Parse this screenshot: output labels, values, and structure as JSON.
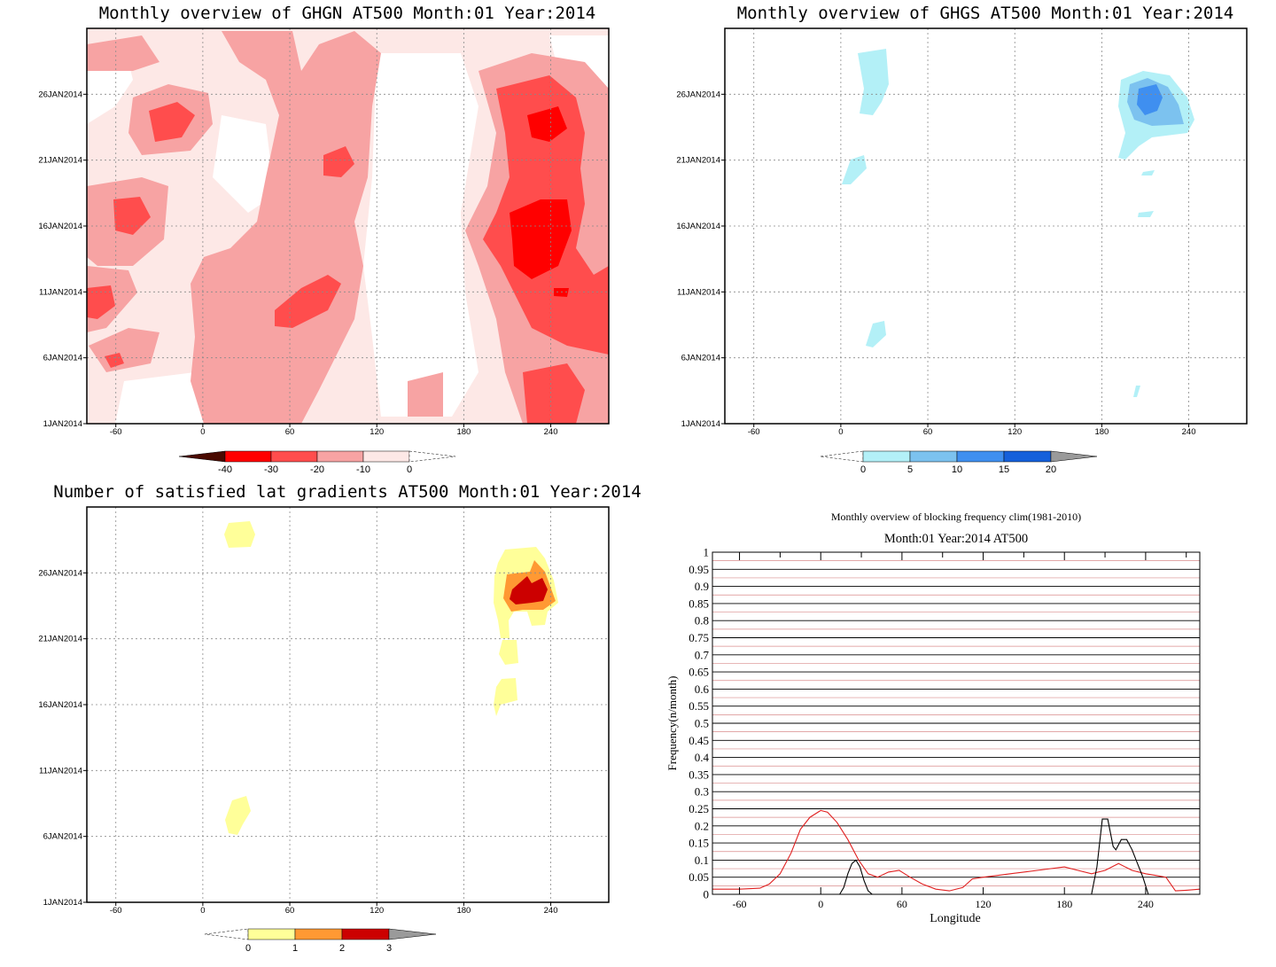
{
  "colors": {
    "ghgn_levels": [
      "#4a0a00",
      "#ff0000",
      "#ff4d4d",
      "#f7a3a3",
      "#fde8e6"
    ],
    "ghgs_levels": [
      "#b3f0f7",
      "#7cc2ef",
      "#3f8ff0",
      "#1560db",
      "#9a9a9a"
    ],
    "satisfied_levels": [
      "#ffff99",
      "#ff9933",
      "#cc0000",
      "#9a9a9a"
    ],
    "freq_line_red": "#e02020",
    "freq_line_black": "#000000",
    "freq_grid_pink": "#d98c8c"
  },
  "shared": {
    "x_tick_labels": [
      "-60",
      "0",
      "60",
      "120",
      "180",
      "240"
    ],
    "y_tick_labels": [
      "1JAN2014",
      "6JAN2014",
      "11JAN2014",
      "16JAN2014",
      "21JAN2014",
      "26JAN2014"
    ]
  },
  "panels": {
    "ghgn": {
      "title": "Monthly overview of GHGN AT500 Month:01 Year:2014",
      "colorbar_labels": [
        "-40",
        "-30",
        "-20",
        "-10",
        "0"
      ]
    },
    "ghgs": {
      "title": "Monthly overview of GHGS AT500 Month:01 Year:2014",
      "colorbar_labels": [
        "0",
        "5",
        "10",
        "15",
        "20"
      ]
    },
    "satisfied": {
      "title": "Number of satisfied lat gradients AT500 Month:01 Year:2014",
      "colorbar_labels": [
        "0",
        "1",
        "2",
        "3"
      ]
    },
    "frequency": {
      "title": "Monthly overview of blocking frequency clim(1981-2010)",
      "subtitle": "Month:01 Year:2014  AT500",
      "xlabel": "Longitude",
      "ylabel": "Frequency(n/month)",
      "x_tick_labels": [
        "-60",
        "0",
        "60",
        "120",
        "180",
        "240"
      ],
      "y_tick_labels": [
        "0",
        "0.05",
        "0.1",
        "0.15",
        "0.2",
        "0.25",
        "0.3",
        "0.35",
        "0.4",
        "0.45",
        "0.5",
        "0.55",
        "0.6",
        "0.65",
        "0.7",
        "0.75",
        "0.8",
        "0.85",
        "0.9",
        "0.95",
        "1"
      ]
    }
  },
  "chart_data": [
    {
      "type": "heatmap",
      "title": "Monthly overview of GHGN AT500 Month:01 Year:2014",
      "x_axis": "longitude",
      "y_axis": "date",
      "xlim": [
        -80,
        280
      ],
      "ylim": [
        "1JAN2014",
        "31JAN2014"
      ],
      "x_ticks": [
        -60,
        0,
        60,
        120,
        180,
        240
      ],
      "y_ticks": [
        "1JAN2014",
        "6JAN2014",
        "11JAN2014",
        "16JAN2014",
        "21JAN2014",
        "26JAN2014"
      ],
      "levels": [
        -40,
        -30,
        -20,
        -10,
        0
      ],
      "grid": true
    },
    {
      "type": "heatmap",
      "title": "Monthly overview of GHGS AT500 Month:01 Year:2014",
      "x_axis": "longitude",
      "y_axis": "date",
      "xlim": [
        -80,
        280
      ],
      "ylim": [
        "1JAN2014",
        "31JAN2014"
      ],
      "x_ticks": [
        -60,
        0,
        60,
        120,
        180,
        240
      ],
      "y_ticks": [
        "1JAN2014",
        "6JAN2014",
        "11JAN2014",
        "16JAN2014",
        "21JAN2014",
        "26JAN2014"
      ],
      "levels": [
        0,
        5,
        10,
        15,
        20
      ],
      "grid": true
    },
    {
      "type": "heatmap",
      "title": "Number of satisfied lat gradients AT500 Month:01 Year:2014",
      "x_axis": "longitude",
      "y_axis": "date",
      "xlim": [
        -80,
        280
      ],
      "ylim": [
        "1JAN2014",
        "31JAN2014"
      ],
      "x_ticks": [
        -60,
        0,
        60,
        120,
        180,
        240
      ],
      "y_ticks": [
        "1JAN2014",
        "6JAN2014",
        "11JAN2014",
        "16JAN2014",
        "21JAN2014",
        "26JAN2014"
      ],
      "levels": [
        0,
        1,
        2,
        3
      ],
      "grid": true
    },
    {
      "type": "line",
      "title": "Monthly overview of blocking frequency clim(1981-2010)",
      "subtitle": "Month:01 Year:2014  AT500",
      "xlabel": "Longitude",
      "ylabel": "Frequency(n/month)",
      "xlim": [
        -80,
        280
      ],
      "ylim": [
        0,
        1
      ],
      "x_ticks": [
        -60,
        0,
        60,
        120,
        180,
        240
      ],
      "series": [
        {
          "color": "#e02020",
          "x": [
            -80,
            -60,
            -45,
            -38,
            -30,
            -22,
            -15,
            -8,
            0,
            5,
            12,
            20,
            28,
            35,
            42,
            50,
            58,
            66,
            75,
            85,
            95,
            105,
            112,
            120,
            130,
            140,
            150,
            160,
            170,
            180,
            190,
            200,
            210,
            220,
            230,
            240,
            248,
            255,
            262,
            270,
            280
          ],
          "y": [
            0.015,
            0.015,
            0.018,
            0.03,
            0.06,
            0.12,
            0.19,
            0.225,
            0.245,
            0.24,
            0.21,
            0.16,
            0.1,
            0.06,
            0.05,
            0.065,
            0.07,
            0.05,
            0.03,
            0.015,
            0.01,
            0.02,
            0.045,
            0.05,
            0.055,
            0.06,
            0.065,
            0.07,
            0.075,
            0.08,
            0.07,
            0.06,
            0.07,
            0.09,
            0.07,
            0.06,
            0.055,
            0.05,
            0.01,
            0.012,
            0.015
          ]
        },
        {
          "color": "#000000",
          "x": [
            14,
            17,
            20,
            23,
            26,
            29,
            32,
            35,
            38,
            200,
            204,
            208,
            212,
            216,
            218,
            222,
            226,
            230,
            234,
            238,
            242
          ],
          "y": [
            0,
            0.02,
            0.06,
            0.09,
            0.1,
            0.08,
            0.04,
            0.01,
            0,
            0,
            0.08,
            0.22,
            0.22,
            0.14,
            0.13,
            0.16,
            0.16,
            0.13,
            0.09,
            0.05,
            0
          ]
        }
      ]
    }
  ]
}
